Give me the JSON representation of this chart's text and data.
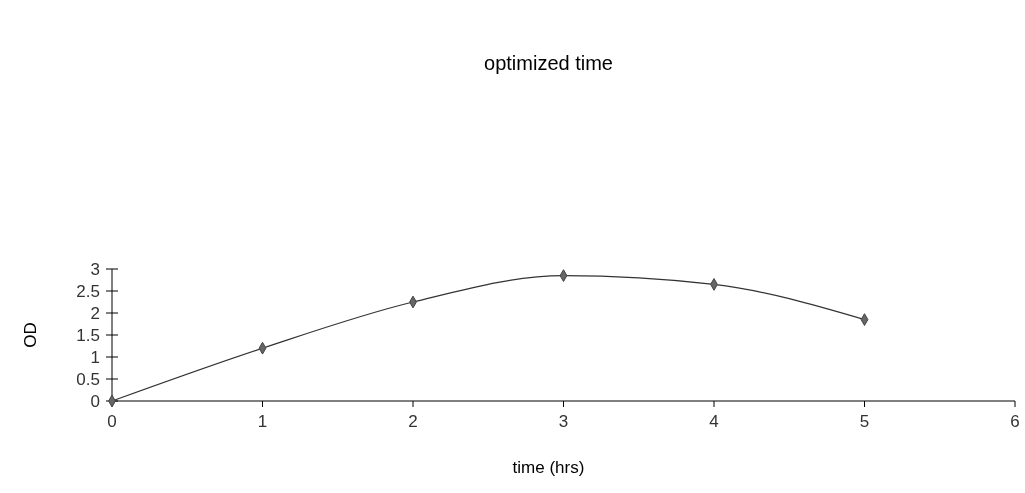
{
  "chart_data": {
    "type": "line",
    "title": "optimized time",
    "xlabel": "time (hrs)",
    "ylabel": "OD",
    "x": [
      0,
      1,
      2,
      3,
      4,
      5
    ],
    "series": [
      {
        "color": "#333333",
        "values": [
          0,
          1.2,
          2.25,
          2.85,
          2.65,
          1.85
        ]
      }
    ],
    "xlim": [
      0,
      6
    ],
    "xticks": [
      0,
      1,
      2,
      3,
      4,
      5,
      6
    ],
    "ylim": [
      0,
      3
    ],
    "yticks": [
      0,
      {
        "value": 0.5,
        "label": "0.5"
      },
      1,
      {
        "value": 1.5,
        "label": "1.5"
      },
      2,
      {
        "value": 2.5,
        "label": "2.5"
      },
      3
    ],
    "marker": "diamond"
  }
}
